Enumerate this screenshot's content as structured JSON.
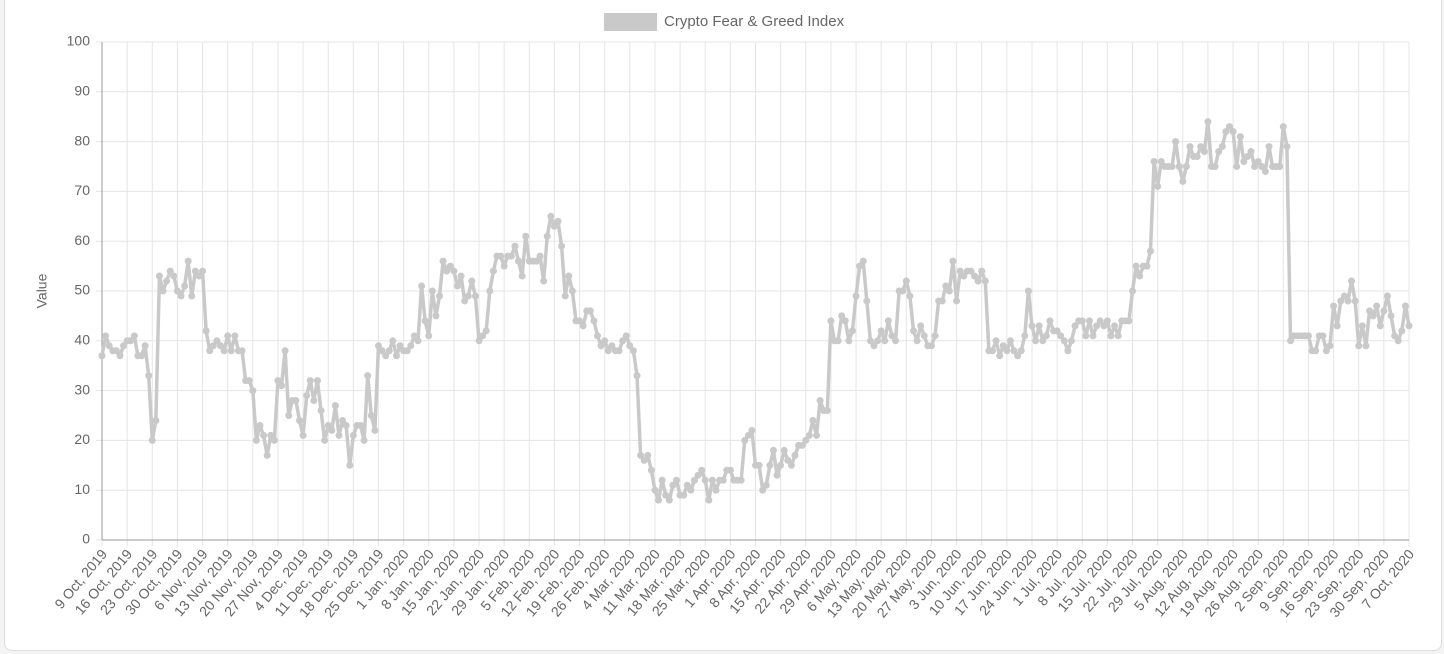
{
  "chart_data": {
    "type": "line",
    "y_label": "Value",
    "legend": "top",
    "grid": true,
    "ylim": [
      0,
      100
    ],
    "yticks": [
      0,
      10,
      20,
      30,
      40,
      50,
      60,
      70,
      80,
      90,
      100
    ],
    "categories": [
      "9 Oct, 2019",
      null,
      null,
      null,
      null,
      null,
      null,
      "16 Oct, 2019",
      null,
      null,
      null,
      null,
      null,
      null,
      "23 Oct, 2019",
      null,
      null,
      null,
      null,
      null,
      null,
      "30 Oct, 2019",
      null,
      null,
      null,
      null,
      null,
      null,
      "6 Nov, 2019",
      null,
      null,
      null,
      null,
      null,
      null,
      "13 Nov, 2019",
      null,
      null,
      null,
      null,
      null,
      null,
      "20 Nov, 2019",
      null,
      null,
      null,
      null,
      null,
      null,
      "27 Nov, 2019",
      null,
      null,
      null,
      null,
      null,
      null,
      "4 Dec, 2019",
      null,
      null,
      null,
      null,
      null,
      null,
      "11 Dec, 2019",
      null,
      null,
      null,
      null,
      null,
      null,
      "18 Dec, 2019",
      null,
      null,
      null,
      null,
      null,
      null,
      "25 Dec, 2019",
      null,
      null,
      null,
      null,
      null,
      null,
      "1 Jan, 2020",
      null,
      null,
      null,
      null,
      null,
      null,
      "8 Jan, 2020",
      null,
      null,
      null,
      null,
      null,
      null,
      "15 Jan, 2020",
      null,
      null,
      null,
      null,
      null,
      null,
      "22 Jan, 2020",
      null,
      null,
      null,
      null,
      null,
      null,
      "29 Jan, 2020",
      null,
      null,
      null,
      null,
      null,
      null,
      "5 Feb, 2020",
      null,
      null,
      null,
      null,
      null,
      null,
      "12 Feb, 2020",
      null,
      null,
      null,
      null,
      null,
      null,
      "19 Feb, 2020",
      null,
      null,
      null,
      null,
      null,
      null,
      "26 Feb, 2020",
      null,
      null,
      null,
      null,
      null,
      null,
      "4 Mar, 2020",
      null,
      null,
      null,
      null,
      null,
      null,
      "11 Mar, 2020",
      null,
      null,
      null,
      null,
      null,
      null,
      "18 Mar, 2020",
      null,
      null,
      null,
      null,
      null,
      null,
      "25 Mar, 2020",
      null,
      null,
      null,
      null,
      null,
      null,
      "1 Apr, 2020",
      null,
      null,
      null,
      null,
      null,
      null,
      "8 Apr, 2020",
      null,
      null,
      null,
      null,
      null,
      null,
      "15 Apr, 2020",
      null,
      null,
      null,
      null,
      null,
      null,
      "22 Apr, 2020",
      null,
      null,
      null,
      null,
      null,
      null,
      "29 Apr, 2020",
      null,
      null,
      null,
      null,
      null,
      null,
      "6 May, 2020",
      null,
      null,
      null,
      null,
      null,
      null,
      "13 May, 2020",
      null,
      null,
      null,
      null,
      null,
      null,
      "20 May, 2020",
      null,
      null,
      null,
      null,
      null,
      null,
      "27 May, 2020",
      null,
      null,
      null,
      null,
      null,
      null,
      "3 Jun, 2020",
      null,
      null,
      null,
      null,
      null,
      null,
      "10 Jun, 2020",
      null,
      null,
      null,
      null,
      null,
      null,
      "17 Jun, 2020",
      null,
      null,
      null,
      null,
      null,
      null,
      "24 Jun, 2020",
      null,
      null,
      null,
      null,
      null,
      null,
      "1 Jul, 2020",
      null,
      null,
      null,
      null,
      null,
      null,
      "8 Jul, 2020",
      null,
      null,
      null,
      null,
      null,
      null,
      "15 Jul, 2020",
      null,
      null,
      null,
      null,
      null,
      null,
      "22 Jul, 2020",
      null,
      null,
      null,
      null,
      null,
      null,
      "29 Jul, 2020",
      null,
      null,
      null,
      null,
      null,
      null,
      "5 Aug, 2020",
      null,
      null,
      null,
      null,
      null,
      null,
      "12 Aug, 2020",
      null,
      null,
      null,
      null,
      null,
      null,
      "19 Aug, 2020",
      null,
      null,
      null,
      null,
      null,
      null,
      "26 Aug, 2020",
      null,
      null,
      null,
      null,
      null,
      null,
      "2 Sep, 2020",
      null,
      null,
      null,
      null,
      null,
      null,
      "9 Sep, 2020",
      null,
      null,
      null,
      null,
      null,
      null,
      "16 Sep, 2020",
      null,
      null,
      null,
      null,
      null,
      null,
      "23 Sep, 2020",
      null,
      null,
      null,
      null,
      null,
      null,
      "30 Sep, 2020",
      null,
      null,
      null,
      null,
      null,
      null,
      "7 Oct, 2020"
    ],
    "series": [
      {
        "name": "Crypto Fear & Greed Index",
        "color": "#c9c9c9",
        "values": [
          37,
          41,
          39,
          38,
          38,
          37,
          39,
          40,
          40,
          41,
          37,
          37,
          39,
          33,
          20,
          24,
          53,
          50,
          52,
          54,
          53,
          50,
          49,
          51,
          56,
          49,
          54,
          53,
          54,
          42,
          38,
          39,
          40,
          39,
          38,
          41,
          38,
          41,
          38,
          38,
          32,
          32,
          30,
          20,
          23,
          21,
          17,
          21,
          20,
          32,
          31,
          38,
          25,
          28,
          28,
          24,
          21,
          29,
          32,
          28,
          32,
          26,
          20,
          23,
          22,
          27,
          21,
          24,
          23,
          15,
          21,
          23,
          23,
          20,
          33,
          25,
          22,
          39,
          38,
          37,
          38,
          40,
          37,
          39,
          38,
          38,
          39,
          41,
          40,
          51,
          44,
          41,
          50,
          45,
          49,
          56,
          54,
          55,
          54,
          51,
          53,
          48,
          49,
          52,
          49,
          40,
          41,
          42,
          50,
          54,
          57,
          57,
          55,
          57,
          57,
          59,
          56,
          53,
          61,
          56,
          56,
          56,
          57,
          52,
          61,
          65,
          63,
          64,
          59,
          49,
          53,
          50,
          44,
          44,
          43,
          46,
          46,
          44,
          41,
          39,
          40,
          38,
          39,
          38,
          38,
          40,
          41,
          39,
          38,
          33,
          17,
          16,
          17,
          14,
          10,
          8,
          12,
          9,
          8,
          11,
          12,
          9,
          9,
          11,
          10,
          12,
          13,
          14,
          12,
          8,
          12,
          10,
          12,
          12,
          14,
          14,
          12,
          12,
          12,
          20,
          21,
          22,
          15,
          15,
          10,
          11,
          15,
          18,
          13,
          15,
          18,
          16,
          15,
          17,
          19,
          19,
          20,
          21,
          24,
          21,
          28,
          26,
          26,
          44,
          40,
          40,
          45,
          44,
          40,
          42,
          49,
          55,
          56,
          48,
          40,
          39,
          40,
          42,
          40,
          44,
          41,
          40,
          50,
          50,
          52,
          49,
          42,
          40,
          43,
          41,
          39,
          39,
          41,
          48,
          48,
          51,
          50,
          56,
          48,
          54,
          53,
          54,
          54,
          53,
          52,
          54,
          52,
          38,
          38,
          40,
          37,
          39,
          38,
          40,
          38,
          37,
          38,
          41,
          50,
          43,
          40,
          43,
          40,
          41,
          44,
          42,
          42,
          41,
          40,
          38,
          40,
          43,
          44,
          44,
          41,
          44,
          41,
          43,
          44,
          43,
          44,
          41,
          43,
          41,
          44,
          44,
          44,
          50,
          55,
          53,
          55,
          55,
          58,
          76,
          71,
          76,
          75,
          75,
          75,
          80,
          75,
          72,
          75,
          79,
          77,
          77,
          79,
          78,
          84,
          75,
          75,
          78,
          79,
          82,
          83,
          82,
          75,
          81,
          76,
          77,
          78,
          75,
          76,
          75,
          74,
          79,
          75,
          75,
          75,
          83,
          79,
          40,
          41,
          41,
          41,
          41,
          41,
          38,
          38,
          41,
          41,
          38,
          39,
          47,
          43,
          48,
          49,
          48,
          52,
          48,
          39,
          43,
          39,
          46,
          45,
          47,
          43,
          46,
          49,
          45,
          41,
          40,
          42,
          47,
          43
        ]
      }
    ]
  }
}
